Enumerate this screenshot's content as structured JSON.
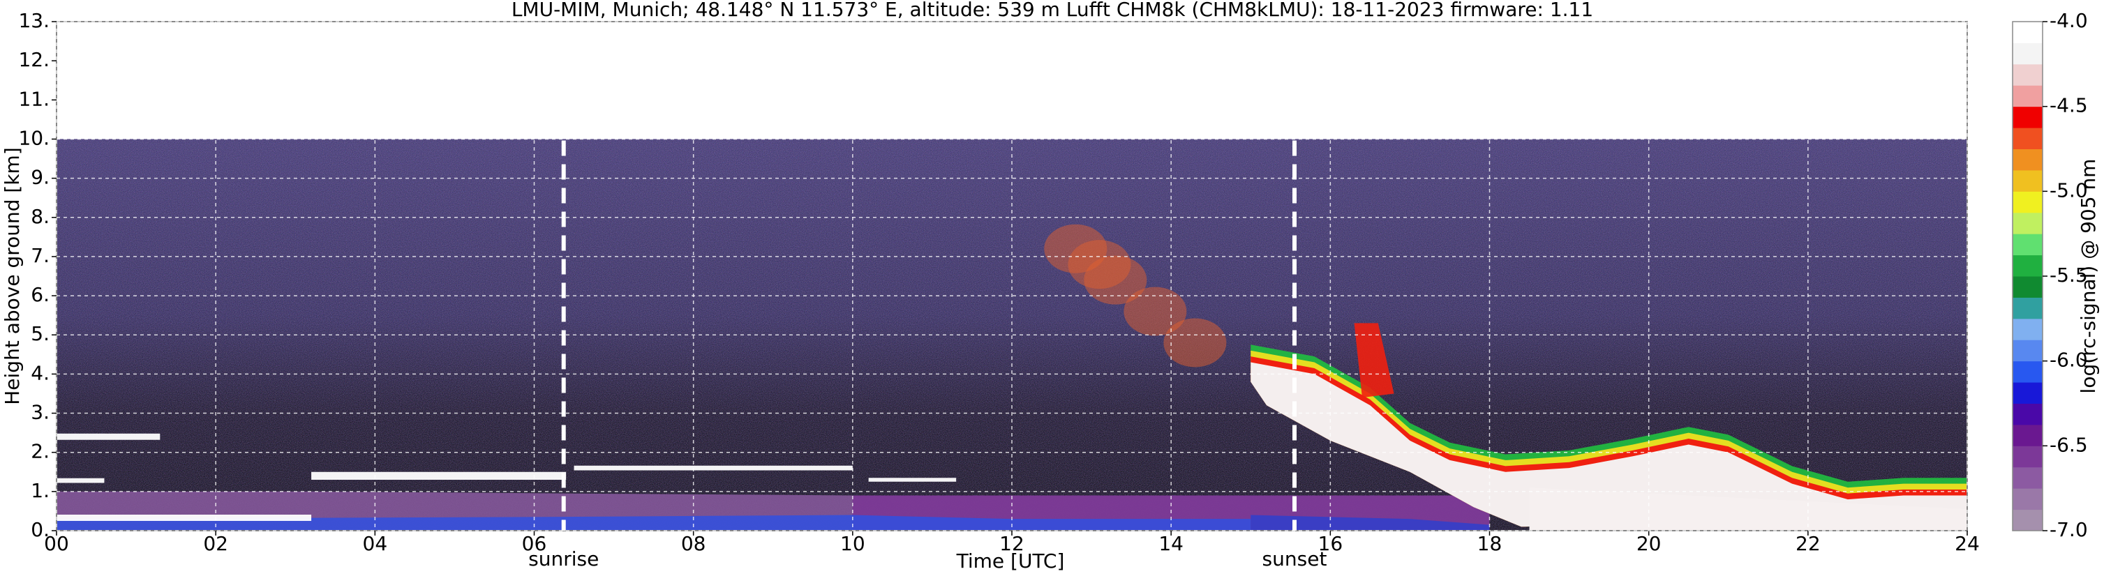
{
  "chart_data": {
    "type": "heatmap",
    "title": "LMU-MIM, Munich; 48.148° N 11.573° E, altitude: 539 m    Lufft CHM8k (CHM8kLMU): 18-11-2023    firmware: 1.11",
    "x_label": "Time [UTC]",
    "y_label": "Height above ground [km]",
    "xlim": [
      0,
      24
    ],
    "xticks": [
      {
        "value": 0,
        "label": "00"
      },
      {
        "value": 2,
        "label": "02"
      },
      {
        "value": 4,
        "label": "04"
      },
      {
        "value": 6,
        "label": "06"
      },
      {
        "value": 8,
        "label": "08"
      },
      {
        "value": 10,
        "label": "10"
      },
      {
        "value": 12,
        "label": "12"
      },
      {
        "value": 14,
        "label": "14"
      },
      {
        "value": 16,
        "label": "16"
      },
      {
        "value": 18,
        "label": "18"
      },
      {
        "value": 20,
        "label": "20"
      },
      {
        "value": 22,
        "label": "22"
      },
      {
        "value": 24,
        "label": "24"
      }
    ],
    "ylim": [
      0,
      13
    ],
    "yticks": [
      {
        "value": 0,
        "label": "0."
      },
      {
        "value": 1,
        "label": "1."
      },
      {
        "value": 2,
        "label": "2."
      },
      {
        "value": 3,
        "label": "3."
      },
      {
        "value": 4,
        "label": "4."
      },
      {
        "value": 5,
        "label": "5."
      },
      {
        "value": 6,
        "label": "6."
      },
      {
        "value": 7,
        "label": "7."
      },
      {
        "value": 8,
        "label": "8."
      },
      {
        "value": 9,
        "label": "9."
      },
      {
        "value": 10,
        "label": "10."
      },
      {
        "value": 11,
        "label": "11."
      },
      {
        "value": 12,
        "label": "12."
      },
      {
        "value": 13,
        "label": "13."
      }
    ],
    "grid": true,
    "annotations": [
      {
        "text": "sunrise",
        "x": 6.37
      },
      {
        "text": "sunset",
        "x": 15.55
      }
    ],
    "colorbar": {
      "label": "log(rc-signal) @ 905 nm",
      "lim": [
        -7,
        -4
      ],
      "ticks": [
        {
          "value": -4,
          "label": "-4.0"
        },
        -4.5,
        {
          "value": -5,
          "label": "-5.0"
        },
        -5.5,
        {
          "value": -6,
          "label": "-6.0"
        },
        -6.5,
        {
          "value": -7,
          "label": "-7.0"
        }
      ],
      "colors": [
        "#a590ad",
        "#9a78a8",
        "#8c5aa2",
        "#7c3898",
        "#6a1890",
        "#4a08a8",
        "#1818d8",
        "#2858f0",
        "#5888f0",
        "#80b0f0",
        "#30a0a0",
        "#108a30",
        "#20b040",
        "#60e070",
        "#c0f060",
        "#f0f020",
        "#f0c020",
        "#f09020",
        "#f05020",
        "#f00000",
        "#f0a0a0",
        "#f0d0d0",
        "#f4f4f4",
        "#ffffff"
      ]
    }
  }
}
